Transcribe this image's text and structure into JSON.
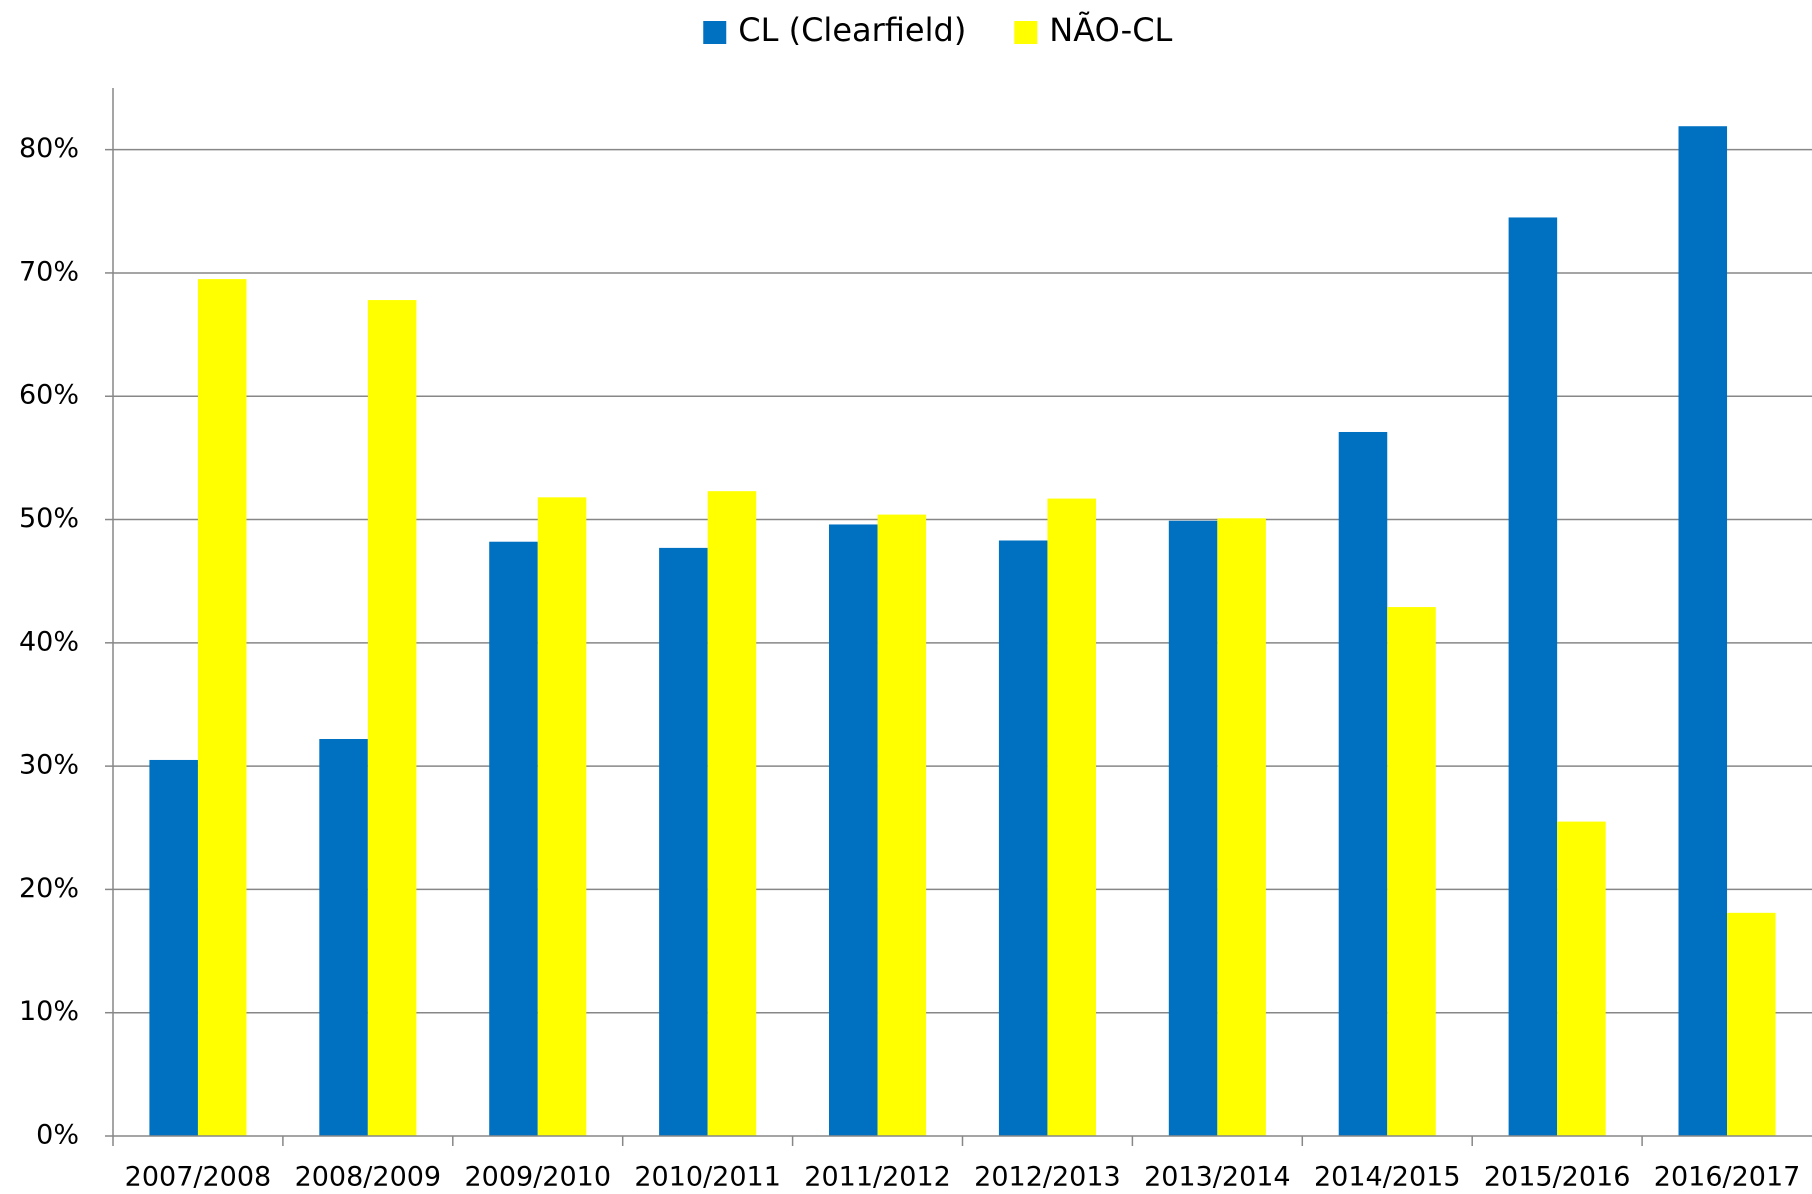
{
  "chart_data": {
    "type": "bar",
    "categories": [
      "2007/2008",
      "2008/2009",
      "2009/2010",
      "2010/2011",
      "2011/2012",
      "2012/2013",
      "2013/2014",
      "2014/2015",
      "2015/2016",
      "2016/2017"
    ],
    "series": [
      {
        "name": "CL (Clearfield)",
        "color": "#0070c0",
        "values": [
          30.5,
          32.2,
          48.2,
          47.7,
          49.6,
          48.3,
          49.9,
          57.1,
          74.5,
          81.9
        ]
      },
      {
        "name": "NÃO-CL",
        "color": "#ffff00",
        "values": [
          69.5,
          67.8,
          51.8,
          52.3,
          50.4,
          51.7,
          50.1,
          42.9,
          25.5,
          18.1
        ]
      }
    ],
    "ylim": [
      0,
      85
    ],
    "yticks": [
      {
        "value": 0,
        "label": "0%"
      },
      {
        "value": 10,
        "label": "10%"
      },
      {
        "value": 20,
        "label": "20%"
      },
      {
        "value": 30,
        "label": "30%"
      },
      {
        "value": 40,
        "label": "40%"
      },
      {
        "value": 50,
        "label": "50%"
      },
      {
        "value": 60,
        "label": "60%"
      },
      {
        "value": 70,
        "label": "70%"
      },
      {
        "value": 80,
        "label": "80%"
      }
    ],
    "grid": true,
    "legend": "top"
  }
}
